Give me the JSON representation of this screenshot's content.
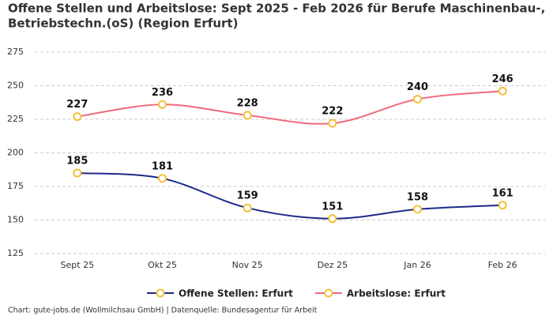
{
  "chart_data": {
    "type": "line",
    "title": [
      "Offene Stellen und Arbeitslose: Sept 2025 - Feb 2026 für Berufe Maschinenbau-,",
      "Betriebstechn.(oS) (Region Erfurt)"
    ],
    "categories": [
      "Sept 25",
      "Okt 25",
      "Nov 25",
      "Dez 25",
      "Jan 26",
      "Feb 26"
    ],
    "series": [
      {
        "name": "Offene Stellen: Erfurt",
        "color": "#1c2a88",
        "values": [
          185,
          181,
          159,
          151,
          158,
          161
        ]
      },
      {
        "name": "Arbeitslose: Erfurt",
        "color": "#f06a7e",
        "values": [
          227,
          236,
          228,
          222,
          240,
          246
        ]
      }
    ],
    "marker_color": "#f3c13a",
    "ylim": [
      125,
      275
    ],
    "yticks": [
      125,
      150,
      175,
      200,
      225,
      250,
      275
    ],
    "grid": true,
    "smooth": true,
    "legend": "bottom",
    "caption": "Chart: gute-jobs.de (Wollmilchsau GmbH) | Datenquelle: Bundesagentur für Arbeit"
  }
}
